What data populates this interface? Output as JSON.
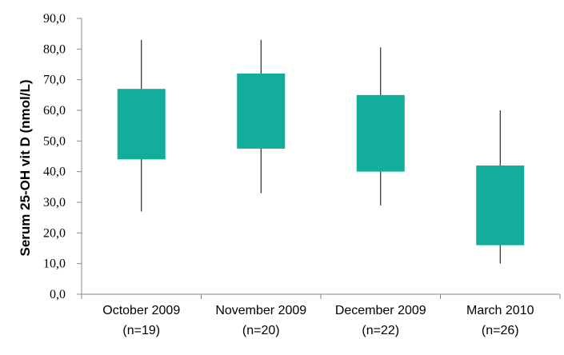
{
  "chart_data": {
    "type": "box",
    "ylabel": "Serum 25-OH vit D (nmol/L)",
    "xlabel": "",
    "ylim": [
      0,
      90
    ],
    "yticks": [
      "0,0",
      "10,0",
      "20,0",
      "30,0",
      "40,0",
      "50,0",
      "60,0",
      "70,0",
      "80,0",
      "90,0"
    ],
    "grid": false,
    "box_color": "#12ad9b",
    "whisker_color": "#000000",
    "categories": [
      {
        "line1": "October 2009",
        "line2": "(n=19)",
        "min": 27,
        "q1": 44,
        "q3": 67,
        "max": 83
      },
      {
        "line1": "November 2009",
        "line2": "(n=20)",
        "min": 33,
        "q1": 47.5,
        "q3": 72,
        "max": 83
      },
      {
        "line1": "December 2009",
        "line2": "(n=22)",
        "min": 29,
        "q1": 40,
        "q3": 65,
        "max": 80.5
      },
      {
        "line1": "March 2010",
        "line2": "(n=26)",
        "min": 10,
        "q1": 16,
        "q3": 42,
        "max": 60
      }
    ]
  }
}
